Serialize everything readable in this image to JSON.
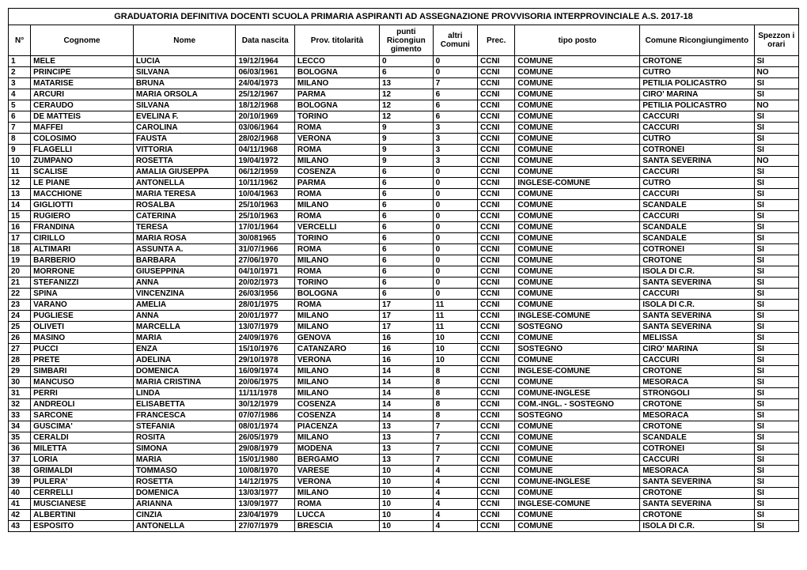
{
  "title": "GRADUATORIA DEFINITIVA  DOCENTI SCUOLA PRIMARIA ASPIRANTI AD ASSEGNAZIONE PROVVISORIA INTERPROVINCIALE A.S. 2017-18",
  "columns": [
    "N°",
    "Cognome",
    "Nome",
    "Data nascita",
    "Prov. titolarità",
    "punti Ricongiun gimento",
    "altri Comuni",
    "Prec.",
    "tipo posto",
    "Comune Ricongiungimento",
    "Spezzon i orari"
  ],
  "rows": [
    [
      "1",
      "MELE",
      "LUCIA",
      "19/12/1964",
      "LECCO",
      "0",
      "0",
      "CCNI",
      "COMUNE",
      "CROTONE",
      "SI"
    ],
    [
      "2",
      "PRINCIPE",
      "SILVANA",
      "06/03/1961",
      "BOLOGNA",
      "6",
      "0",
      "CCNI",
      "COMUNE",
      "CUTRO",
      "NO"
    ],
    [
      "3",
      "MATARISE",
      "BRUNA",
      "24/04/1973",
      "MILANO",
      "13",
      "7",
      "CCNI",
      "COMUNE",
      "PETILIA POLICASTRO",
      "SI"
    ],
    [
      "4",
      "ARCURI",
      "MARIA ORSOLA",
      "25/12/1967",
      "PARMA",
      "12",
      "6",
      "CCNI",
      "COMUNE",
      "CIRO' MARINA",
      "SI"
    ],
    [
      "5",
      "CERAUDO",
      "SILVANA",
      "18/12/1968",
      "BOLOGNA",
      "12",
      "6",
      "CCNI",
      "COMUNE",
      "PETILIA POLICASTRO",
      "NO"
    ],
    [
      "6",
      "DE MATTEIS",
      "EVELINA F.",
      "20/10/1969",
      "TORINO",
      "12",
      "6",
      "CCNI",
      "COMUNE",
      "CACCURI",
      "SI"
    ],
    [
      "7",
      "MAFFEI",
      "CAROLINA",
      "03/06/1964",
      "ROMA",
      "9",
      "3",
      "CCNI",
      "COMUNE",
      "CACCURI",
      "SI"
    ],
    [
      "8",
      "COLOSIMO",
      "FAUSTA",
      "28/02/1968",
      "VERONA",
      "9",
      "3",
      "CCNI",
      "COMUNE",
      "CUTRO",
      "SI"
    ],
    [
      "9",
      "FLAGELLI",
      "VITTORIA",
      "04/11/1968",
      "ROMA",
      "9",
      "3",
      "CCNI",
      "COMUNE",
      "COTRONEI",
      "SI"
    ],
    [
      "10",
      "ZUMPANO",
      "ROSETTA",
      "19/04/1972",
      "MILANO",
      "9",
      "3",
      "CCNI",
      "COMUNE",
      "SANTA SEVERINA",
      "NO"
    ],
    [
      "11",
      "SCALISE",
      "AMALIA GIUSEPPA",
      "06/12/1959",
      "COSENZA",
      "6",
      "0",
      "CCNI",
      "COMUNE",
      "CACCURI",
      "SI"
    ],
    [
      "12",
      "LE PIANE",
      "ANTONELLA",
      "10/11/1962",
      "PARMA",
      "6",
      "0",
      "CCNI",
      "INGLESE-COMUNE",
      "CUTRO",
      "SI"
    ],
    [
      "13",
      "MACCHIONE",
      "MARIA TERESA",
      "10/04/1963",
      "ROMA",
      "6",
      "0",
      "CCNI",
      "COMUNE",
      "CACCURI",
      "SI"
    ],
    [
      "14",
      "GIGLIOTTI",
      "ROSALBA",
      "25/10/1963",
      "MILANO",
      "6",
      "0",
      "CCNI",
      "COMUNE",
      "SCANDALE",
      "SI"
    ],
    [
      "15",
      "RUGIERO",
      "CATERINA",
      "25/10/1963",
      "ROMA",
      "6",
      "0",
      "CCNI",
      "COMUNE",
      "CACCURI",
      "SI"
    ],
    [
      "16",
      "FRANDINA",
      "TERESA",
      "17/01/1964",
      "VERCELLI",
      "6",
      "0",
      "CCNI",
      "COMUNE",
      "SCANDALE",
      "SI"
    ],
    [
      "17",
      "CIRILLO",
      "MARIA ROSA",
      "30/081965",
      "TORINO",
      "6",
      "0",
      "CCNI",
      "COMUNE",
      "SCANDALE",
      "SI"
    ],
    [
      "18",
      "ALTIMARI",
      "ASSUNTA A.",
      "31/07/1966",
      "ROMA",
      "6",
      "0",
      "CCNI",
      "COMUNE",
      "COTRONEI",
      "SI"
    ],
    [
      "19",
      "BARBERIO",
      "BARBARA",
      "27/06/1970",
      "MILANO",
      "6",
      "0",
      "CCNI",
      "COMUNE",
      "CROTONE",
      "SI"
    ],
    [
      "20",
      "MORRONE",
      "GIUSEPPINA",
      "04/10/1971",
      "ROMA",
      "6",
      "0",
      "CCNI",
      "COMUNE",
      "ISOLA DI C.R.",
      "SI"
    ],
    [
      "21",
      "STEFANIZZI",
      "ANNA",
      "20/02/1973",
      "TORINO",
      "6",
      "0",
      "CCNI",
      "COMUNE",
      "SANTA SEVERINA",
      "SI"
    ],
    [
      "22",
      "SPINA",
      "VINCENZINA",
      "26/03/1956",
      "BOLOGNA",
      "6",
      "0",
      "CCNI",
      "COMUNE",
      "CACCURI",
      "SI"
    ],
    [
      "23",
      "VARANO",
      "AMELIA",
      "28/01/1975",
      "ROMA",
      "17",
      "11",
      "CCNI",
      "COMUNE",
      "ISOLA DI C.R.",
      "SI"
    ],
    [
      "24",
      "PUGLIESE",
      "ANNA",
      "20/01/1977",
      "MILANO",
      "17",
      "11",
      "CCNI",
      "INGLESE-COMUNE",
      "SANTA SEVERINA",
      "SI"
    ],
    [
      "25",
      "OLIVETI",
      "MARCELLA",
      "13/07/1979",
      "MILANO",
      "17",
      "11",
      "CCNI",
      "SOSTEGNO",
      "SANTA SEVERINA",
      "SI"
    ],
    [
      "26",
      "MASINO",
      "MARIA",
      "24/09/1976",
      "GENOVA",
      "16",
      "10",
      "CCNI",
      "COMUNE",
      "MELISSA",
      "SI"
    ],
    [
      "27",
      "PUCCI",
      "ENZA",
      "15/10/1976",
      "CATANZARO",
      "16",
      "10",
      "CCNI",
      "SOSTEGNO",
      "CIRO' MARINA",
      "SI"
    ],
    [
      "28",
      "PRETE",
      "ADELINA",
      "29/10/1978",
      "VERONA",
      "16",
      "10",
      "CCNI",
      "COMUNE",
      "CACCURI",
      "SI"
    ],
    [
      "29",
      "SIMBARI",
      "DOMENICA",
      "16/09/1974",
      "MILANO",
      "14",
      "8",
      "CCNI",
      "INGLESE-COMUNE",
      "CROTONE",
      "SI"
    ],
    [
      "30",
      "MANCUSO",
      "MARIA CRISTINA",
      "20/06/1975",
      "MILANO",
      "14",
      "8",
      "CCNI",
      "COMUNE",
      "MESORACA",
      "SI"
    ],
    [
      "31",
      "PERRI",
      "LINDA",
      "11/11/1978",
      "MILANO",
      "14",
      "8",
      "CCNI",
      "COMUNE-INGLESE",
      "STRONGOLI",
      "SI"
    ],
    [
      "32",
      "ANDREOLI",
      "ELISABETTA",
      "30/12/1979",
      "COSENZA",
      "14",
      "8",
      "CCNI",
      "COM.-INGL. - SOSTEGNO",
      "CROTONE",
      "SI"
    ],
    [
      "33",
      "SARCONE",
      "FRANCESCA",
      "07/07/1986",
      "COSENZA",
      "14",
      "8",
      "CCNI",
      "SOSTEGNO",
      "MESORACA",
      "SI"
    ],
    [
      "34",
      "GUSCIMA'",
      "STEFANIA",
      "08/01/1974",
      "PIACENZA",
      "13",
      "7",
      "CCNI",
      "COMUNE",
      "CROTONE",
      "SI"
    ],
    [
      "35",
      "CERALDI",
      "ROSITA",
      "26/05/1979",
      "MILANO",
      "13",
      "7",
      "CCNI",
      "COMUNE",
      "SCANDALE",
      "SI"
    ],
    [
      "36",
      "MILETTA",
      "SIMONA",
      "29/08/1979",
      "MODENA",
      "13",
      "7",
      "CCNI",
      "COMUNE",
      "COTRONEI",
      "SI"
    ],
    [
      "37",
      "LORIA",
      "MARIA",
      "15/01/1980",
      "BERGAMO",
      "13",
      "7",
      "CCNI",
      "COMUNE",
      "CACCURI",
      "SI"
    ],
    [
      "38",
      "GRIMALDI",
      "TOMMASO",
      "10/08/1970",
      "VARESE",
      "10",
      "4",
      "CCNI",
      "COMUNE",
      "MESORACA",
      "SI"
    ],
    [
      "39",
      "PULERA'",
      "ROSETTA",
      "14/12/1975",
      "VERONA",
      "10",
      "4",
      "CCNI",
      "COMUNE-INGLESE",
      "SANTA SEVERINA",
      "SI"
    ],
    [
      "40",
      "CERRELLI",
      "DOMENICA",
      "13/03/1977",
      "MILANO",
      "10",
      "4",
      "CCNI",
      "COMUNE",
      "CROTONE",
      "SI"
    ],
    [
      "41",
      "MUSCIANESE",
      "ARIANNA",
      "13/09/1977",
      "ROMA",
      "10",
      "4",
      "CCNI",
      "INGLESE-COMUNE",
      "SANTA SEVERINA",
      "SI"
    ],
    [
      "42",
      "ALBERTINI",
      "CINZIA",
      "23/04/1979",
      "LUCCA",
      "10",
      "4",
      "CCNI",
      "COMUNE",
      "CROTONE",
      "SI"
    ],
    [
      "43",
      "ESPOSITO",
      "ANTONELLA",
      "27/07/1979",
      "BRESCIA",
      "10",
      "4",
      "CCNI",
      "COMUNE",
      "ISOLA DI C.R.",
      "SI"
    ]
  ]
}
